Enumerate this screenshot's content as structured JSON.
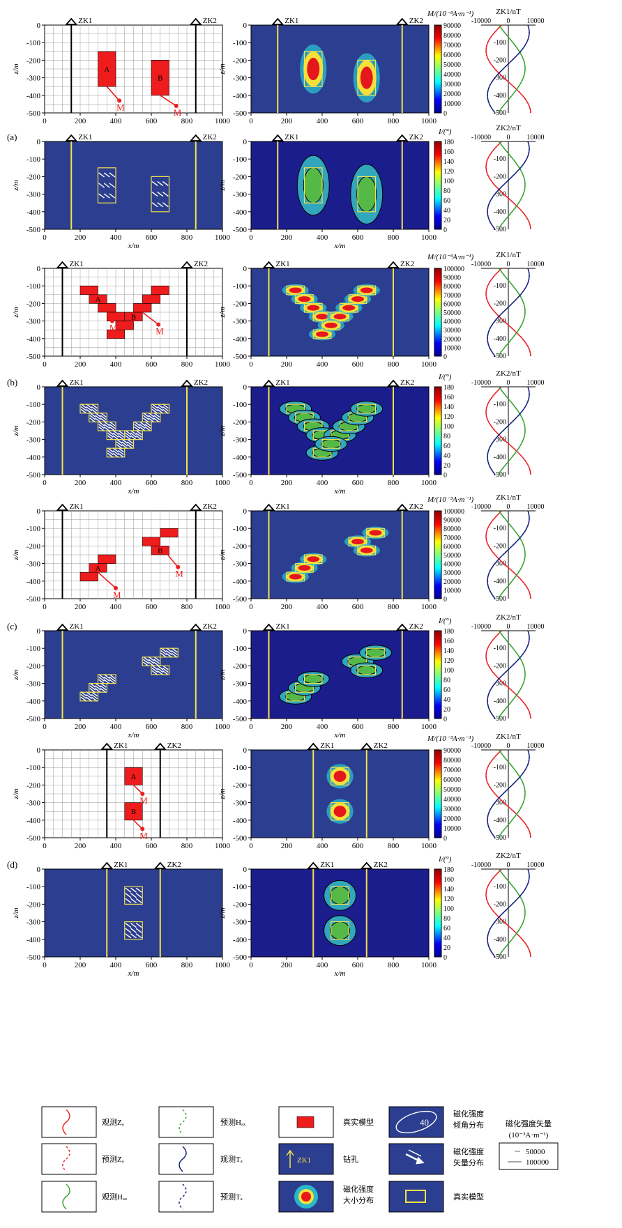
{
  "labels": {
    "zk1": "ZK1",
    "zk2": "ZK2",
    "z_axis": "z/m",
    "x_axis": "x/m",
    "m_unit": "M/(10⁻³A·m⁻¹)",
    "i_unit": "I/(°)",
    "zk1_nt": "ZK1/nT",
    "zk2_nt": "ZK2/nT",
    "body_a": "A",
    "body_b": "B",
    "mag_m": "M"
  },
  "panels": [
    {
      "id": "a",
      "label": "(a)"
    },
    {
      "id": "b",
      "label": "(b)"
    },
    {
      "id": "c",
      "label": "(c)"
    },
    {
      "id": "d",
      "label": "(d)"
    }
  ],
  "axis": {
    "x_ticks": [
      0,
      200,
      400,
      600,
      800,
      1000
    ],
    "z_ticks": [
      0,
      -100,
      -200,
      -300,
      -400,
      -500
    ],
    "xlim": [
      0,
      1000
    ],
    "zlim": [
      -500,
      0
    ]
  },
  "m_colorbar": {
    "a": [
      90000,
      80000,
      70000,
      60000,
      50000,
      40000,
      30000,
      20000,
      10000,
      0
    ],
    "b": [
      100000,
      90000,
      80000,
      70000,
      60000,
      50000,
      40000,
      30000,
      20000,
      10000,
      0
    ],
    "c": [
      100000,
      90000,
      80000,
      70000,
      60000,
      50000,
      40000,
      30000,
      20000,
      10000,
      0
    ],
    "d": [
      90000,
      80000,
      70000,
      60000,
      50000,
      40000,
      30000,
      20000,
      10000,
      0
    ]
  },
  "i_colorbar": [
    180,
    160,
    140,
    120,
    100,
    80,
    60,
    40,
    20,
    0
  ],
  "profile_ticks": [
    "-10000",
    "0",
    "10000"
  ],
  "profile_z_ticks": [
    "-100",
    "-200",
    "-300",
    "-400",
    "-500"
  ],
  "legend": {
    "obs_za": "观测Zₐ",
    "pre_za": "预测Zₐ",
    "obs_hax": "观测Hₐₓ",
    "pre_hax": "预测Hₐₓ",
    "obs_ta": "观测Tₐ",
    "pre_ta": "预测Tₐ",
    "true_model": "真实模型",
    "borehole": "钻孔",
    "m_size": "磁化强度大小分布",
    "i_dist": "磁化强度倾角分布",
    "vec_dist": "磁化强度矢量分布",
    "true_model2": "真实模型",
    "vec_title": "磁化强度矢量",
    "vec_unit": "(10⁻³A·m⁻¹)",
    "vec_small": "50000",
    "vec_large": "100000",
    "contour_val": "40"
  },
  "colors": {
    "background_blue": "#2c3e8f",
    "body_red": "#ee1c1c",
    "outline_yellow": "#f3e24a",
    "za_red": "#e8262b",
    "hax_green": "#3aa435",
    "ta_blue": "#1a237e"
  }
}
